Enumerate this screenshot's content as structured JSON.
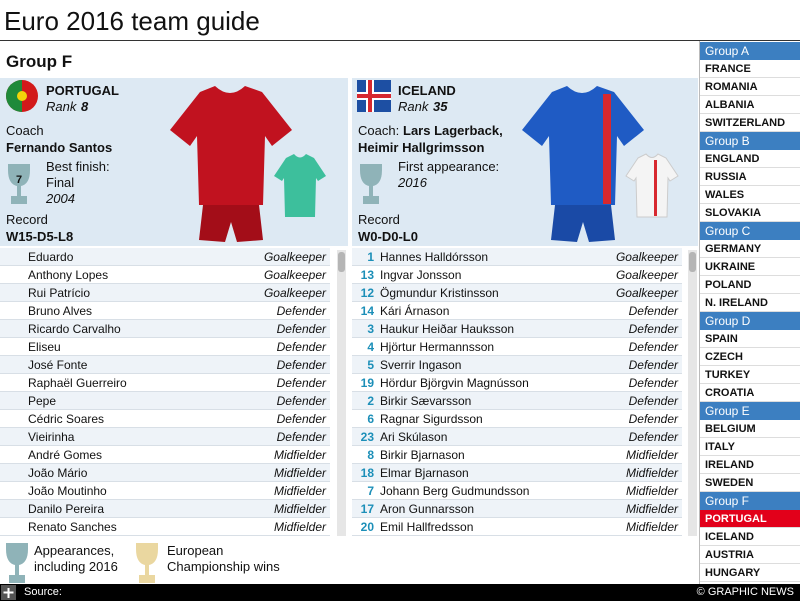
{
  "header": {
    "title": "Euro 2016 team guide"
  },
  "group_title": "Group F",
  "teams": [
    {
      "name": "PORTUGAL",
      "rank_label": "Rank",
      "rank": 8,
      "coach_label": "Coach",
      "coach": [
        "Fernando Santos"
      ],
      "finish_label": "Best finish:",
      "finish_result": "Final",
      "finish_year": "2004",
      "appearances": 7,
      "record_label": "Record",
      "record": "W15-D5-L8",
      "players": [
        {
          "name": "Eduardo",
          "position": "Goalkeeper"
        },
        {
          "name": "Anthony Lopes",
          "position": "Goalkeeper"
        },
        {
          "name": "Rui Patrício",
          "position": "Goalkeeper"
        },
        {
          "name": "Bruno Alves",
          "position": "Defender"
        },
        {
          "name": "Ricardo Carvalho",
          "position": "Defender"
        },
        {
          "name": "Eliseu",
          "position": "Defender"
        },
        {
          "name": "José Fonte",
          "position": "Defender"
        },
        {
          "name": "Raphaël Guerreiro",
          "position": "Defender"
        },
        {
          "name": "Pepe",
          "position": "Defender"
        },
        {
          "name": "Cédric Soares",
          "position": "Defender"
        },
        {
          "name": "Vieirinha",
          "position": "Defender"
        },
        {
          "name": "André Gomes",
          "position": "Midfielder"
        },
        {
          "name": "João Mário",
          "position": "Midfielder"
        },
        {
          "name": "João Moutinho",
          "position": "Midfielder"
        },
        {
          "name": "Danilo Pereira",
          "position": "Midfielder"
        },
        {
          "name": "Renato Sanches",
          "position": "Midfielder"
        }
      ]
    },
    {
      "name": "ICELAND",
      "rank_label": "Rank",
      "rank": 35,
      "coach_label": "Coach:",
      "coach": [
        "Lars Lagerback,",
        "Heimir Hallgrimsson"
      ],
      "finish_label": "First appearance:",
      "finish_year": "2016",
      "appearances": 1,
      "record_label": "Record",
      "record": "W0-D0-L0",
      "players": [
        {
          "number": 1,
          "name": "Hannes Halldórsson",
          "position": "Goalkeeper"
        },
        {
          "number": 13,
          "name": "Ingvar Jonsson",
          "position": "Goalkeeper"
        },
        {
          "number": 12,
          "name": "Ögmundur Kristinsson",
          "position": "Goalkeeper"
        },
        {
          "number": 14,
          "name": "Kári Árnason",
          "position": "Defender"
        },
        {
          "number": 3,
          "name": "Haukur Heiðar Hauksson",
          "position": "Defender"
        },
        {
          "number": 4,
          "name": "Hjörtur Hermannsson",
          "position": "Defender"
        },
        {
          "number": 5,
          "name": "Sverrir Ingason",
          "position": "Defender"
        },
        {
          "number": 19,
          "name": "Hördur Björgvin Magnússon",
          "position": "Defender"
        },
        {
          "number": 2,
          "name": "Birkir Sævarsson",
          "position": "Defender"
        },
        {
          "number": 6,
          "name": "Ragnar Sigurdsson",
          "position": "Defender"
        },
        {
          "number": 23,
          "name": "Ari Skúlason",
          "position": "Defender"
        },
        {
          "number": 8,
          "name": "Birkir Bjarnason",
          "position": "Midfielder"
        },
        {
          "number": 18,
          "name": "Elmar Bjarnason",
          "position": "Midfielder"
        },
        {
          "number": 7,
          "name": "Johann Berg Gudmundsson",
          "position": "Midfielder"
        },
        {
          "number": 17,
          "name": "Aron Gunnarsson",
          "position": "Midfielder"
        },
        {
          "number": 20,
          "name": "Emil Hallfredsson",
          "position": "Midfielder"
        }
      ]
    }
  ],
  "legend": {
    "appearances": "Appearances, including 2016",
    "wins": "European Championship wins"
  },
  "groups": [
    {
      "name": "Group A",
      "teams": [
        "FRANCE",
        "ROMANIA",
        "ALBANIA",
        "SWITZERLAND"
      ]
    },
    {
      "name": "Group B",
      "teams": [
        "ENGLAND",
        "RUSSIA",
        "WALES",
        "SLOVAKIA"
      ]
    },
    {
      "name": "Group C",
      "teams": [
        "GERMANY",
        "UKRAINE",
        "POLAND",
        "N. IRELAND"
      ]
    },
    {
      "name": "Group D",
      "teams": [
        "SPAIN",
        "CZECH",
        "TURKEY",
        "CROATIA"
      ]
    },
    {
      "name": "Group E",
      "teams": [
        "BELGIUM",
        "ITALY",
        "IRELAND",
        "SWEDEN"
      ]
    },
    {
      "name": "Group F",
      "teams": [
        "PORTUGAL",
        "ICELAND",
        "AUSTRIA",
        "HUNGARY"
      ]
    }
  ],
  "selected": {
    "group": 5,
    "team": 0
  },
  "footer": {
    "source": "Source:",
    "credit": "© GRAPHIC NEWS"
  }
}
